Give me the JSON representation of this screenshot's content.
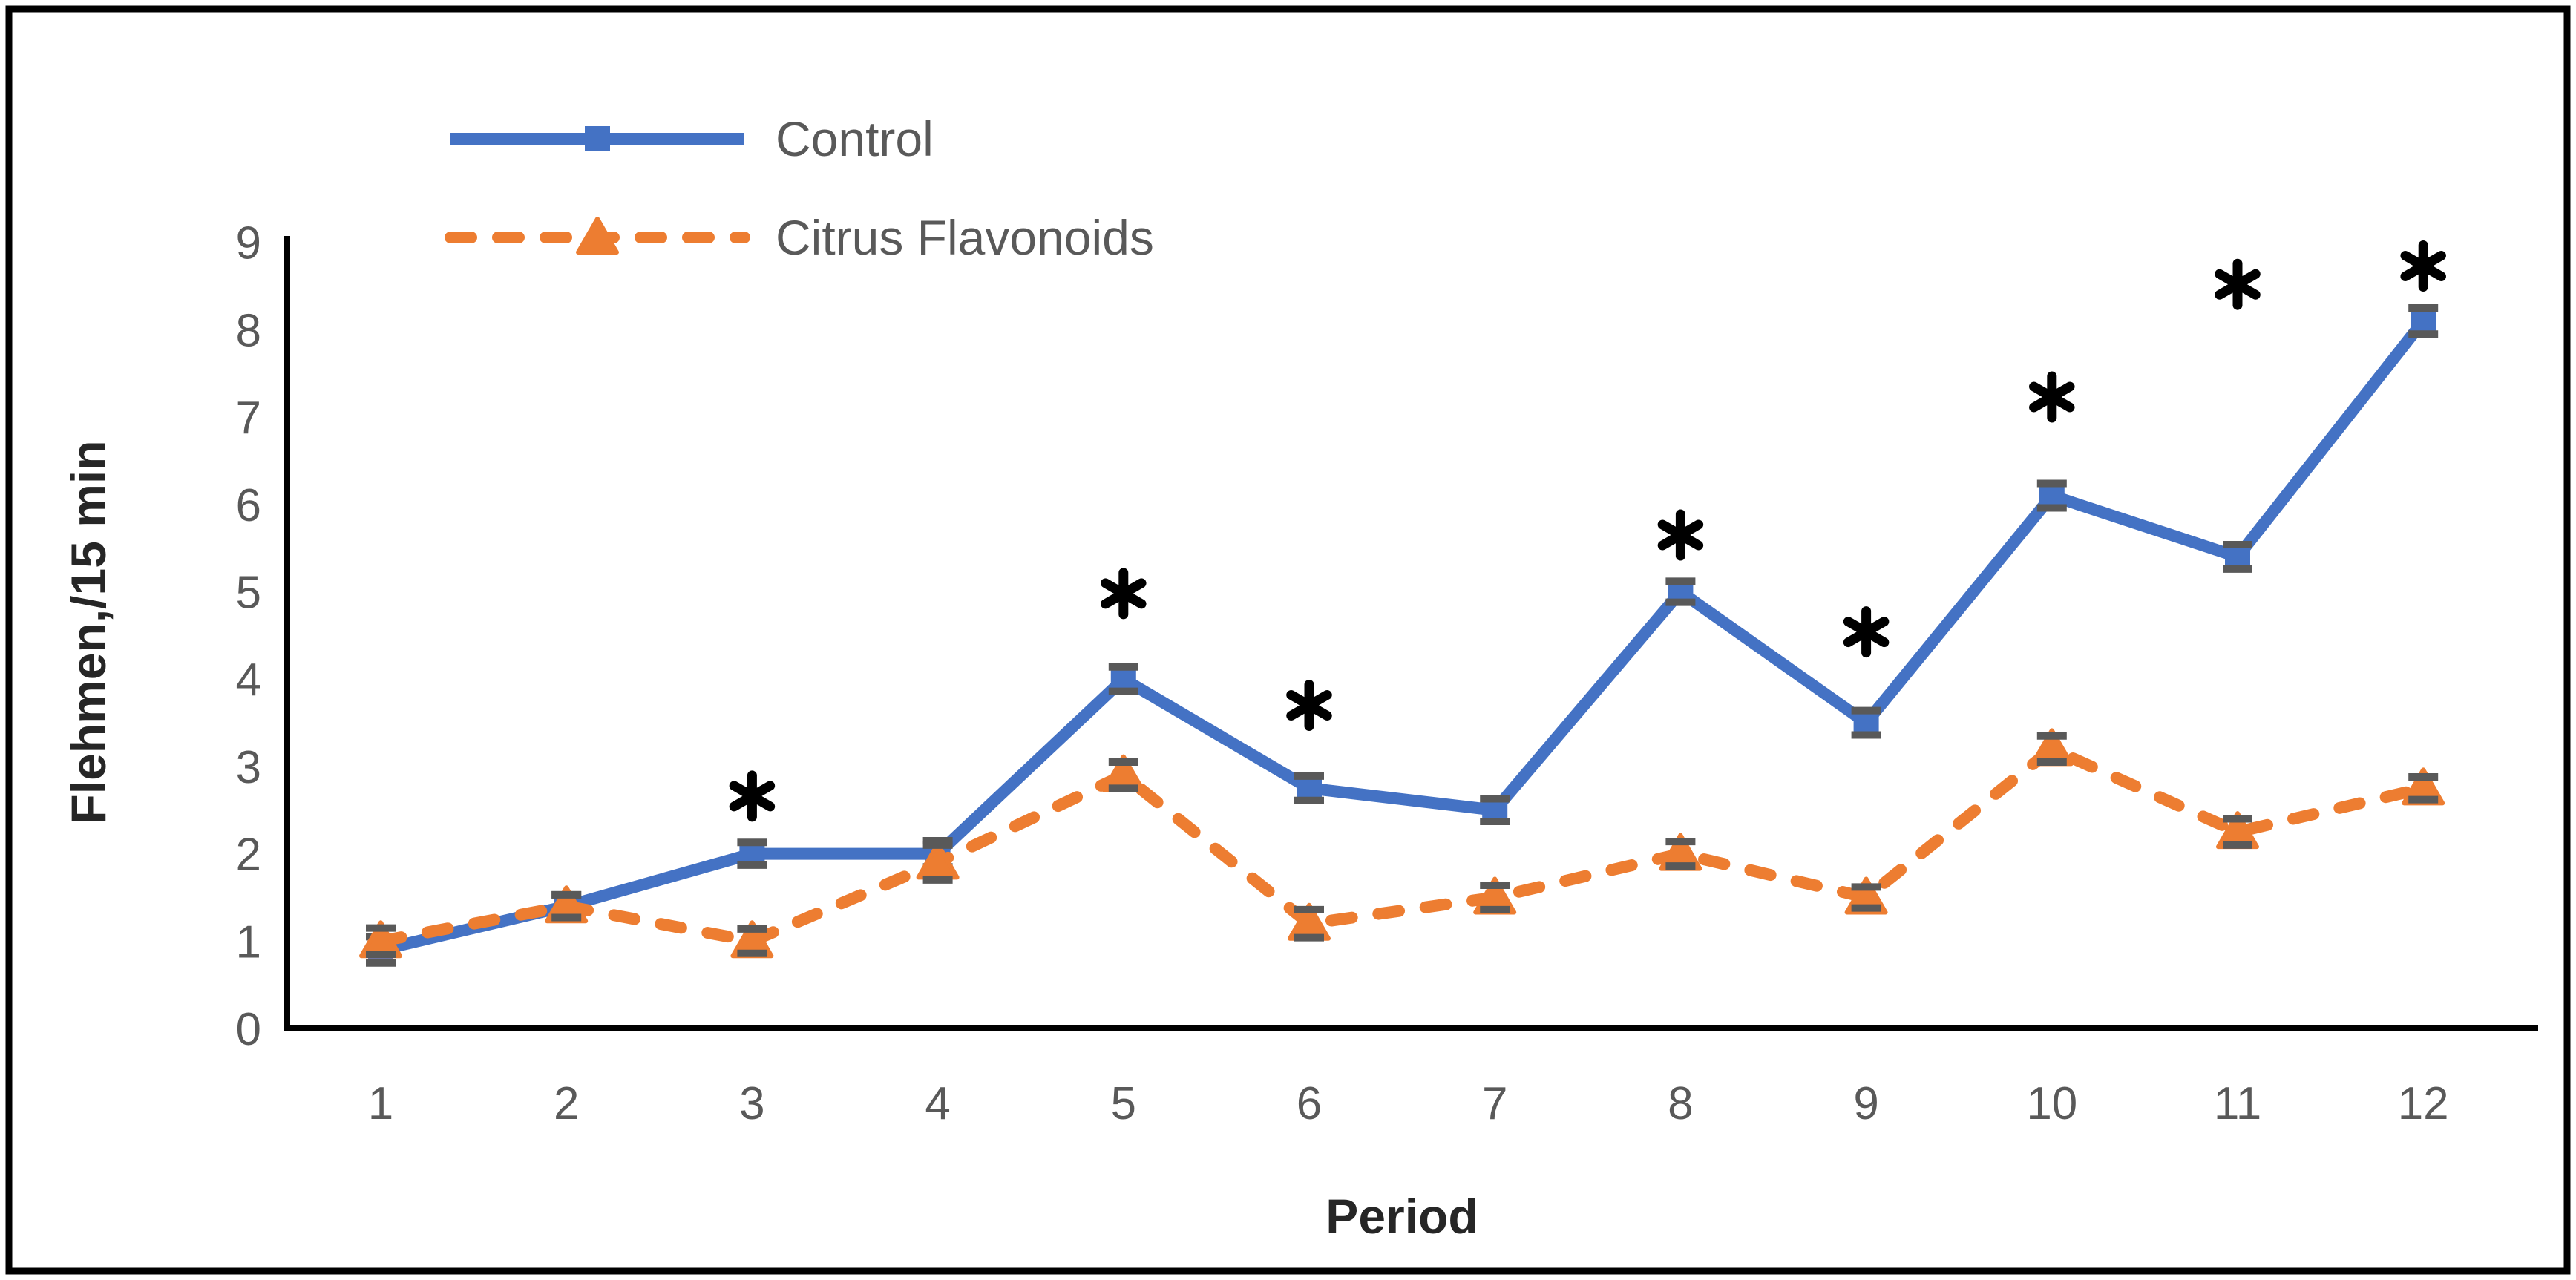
{
  "figure": {
    "background": "#ffffff",
    "border_color": "#000000"
  },
  "chart_data": {
    "type": "line",
    "title": "",
    "xlabel": "Period",
    "ylabel": "Flehmen,/15 min",
    "categories": [
      1,
      2,
      3,
      4,
      5,
      6,
      7,
      8,
      9,
      10,
      11,
      12
    ],
    "ylim": [
      0,
      9
    ],
    "yticks": [
      0,
      1,
      2,
      3,
      4,
      5,
      6,
      7,
      8,
      9
    ],
    "grid": false,
    "legend_position": "top-left-inside",
    "series": [
      {
        "name": "Control",
        "color": "#4472C4",
        "line_style": "solid",
        "marker": "square",
        "values": [
          0.9,
          1.4,
          2.0,
          2.0,
          4.0,
          2.75,
          2.5,
          5.0,
          3.5,
          6.1,
          5.4,
          8.1
        ],
        "errors": [
          0.15,
          0.13,
          0.13,
          0.15,
          0.14,
          0.14,
          0.13,
          0.12,
          0.14,
          0.14,
          0.14,
          0.15
        ]
      },
      {
        "name": "Citrus Flavonoids",
        "color": "#ED7D31",
        "line_style": "dashed",
        "marker": "triangle",
        "values": [
          1.0,
          1.4,
          1.0,
          1.9,
          2.9,
          1.2,
          1.5,
          2.0,
          1.5,
          3.2,
          2.25,
          2.75
        ],
        "errors": [
          0.15,
          0.13,
          0.14,
          0.2,
          0.15,
          0.16,
          0.14,
          0.14,
          0.12,
          0.15,
          0.15,
          0.13
        ]
      }
    ],
    "annotations": [
      {
        "symbol": "*",
        "x": 3,
        "y": 2.66
      },
      {
        "symbol": "*",
        "x": 5,
        "y": 4.98
      },
      {
        "symbol": "*",
        "x": 6,
        "y": 3.7
      },
      {
        "symbol": "*",
        "x": 8,
        "y": 5.65
      },
      {
        "symbol": "*",
        "x": 9,
        "y": 4.54
      },
      {
        "symbol": "*",
        "x": 10,
        "y": 7.23
      },
      {
        "symbol": "*",
        "x": 11,
        "y": 8.52
      },
      {
        "symbol": "*",
        "x": 12,
        "y": 8.73
      }
    ]
  },
  "legend": {
    "items": [
      {
        "label": "Control"
      },
      {
        "label": "Citrus Flavonoids"
      }
    ]
  },
  "colors": {
    "control_series": "#4472C4",
    "citrus_series": "#ED7D31",
    "error_bar": "#595959",
    "tick_text": "#595959",
    "axis_title_text": "#262626",
    "axis_line": "#000000",
    "annotation": "#000000"
  }
}
